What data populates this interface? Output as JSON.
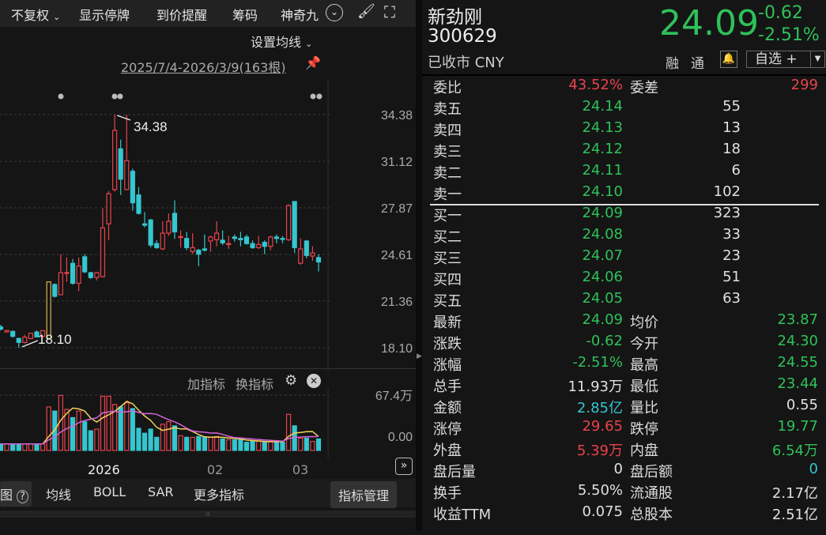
{
  "toolbar": {
    "items": [
      "不复权",
      "显示停牌",
      "到价提醒",
      "筹码",
      "神奇九"
    ],
    "icons": [
      "chevron-down-icon",
      "circle-chevron-icon",
      "brush-icon",
      "fullscreen-icon"
    ]
  },
  "chart": {
    "ma_setting": "设置均线",
    "range": "2025/7/4-2026/3/9(163根)",
    "high_label": "34.38",
    "low_label": "18.10",
    "indicator_add": "加指标",
    "indicator_switch": "换指标",
    "vol_max": "67.4万",
    "vol_min": "0.00",
    "x_labels": [
      "2026",
      "02",
      "03"
    ]
  },
  "chart_data": {
    "type": "candlestick",
    "y_ticks": [
      34.38,
      31.12,
      27.87,
      24.61,
      21.36,
      18.1
    ],
    "ylim": [
      18.1,
      34.38
    ],
    "colors": {
      "up": "#e9424c",
      "down": "#35c6cf",
      "limit_up": "#d9b64a"
    },
    "limit_up_index": 8,
    "ohlc": [
      [
        19.55,
        19.7,
        19.3,
        19.4
      ],
      [
        19.2,
        19.35,
        19.15,
        19.3
      ],
      [
        19.24,
        19.3,
        18.8,
        18.9
      ],
      [
        18.74,
        18.8,
        18.1,
        18.47
      ],
      [
        18.47,
        19.0,
        18.4,
        18.84
      ],
      [
        18.74,
        19.11,
        18.7,
        19.11
      ],
      [
        19.2,
        19.3,
        18.84,
        18.85
      ],
      [
        18.9,
        19.3,
        18.8,
        19.29
      ],
      [
        18.74,
        22.7,
        18.74,
        22.7
      ],
      [
        22.51,
        22.6,
        21.6,
        21.69
      ],
      [
        21.8,
        24.63,
        21.78,
        23.34
      ],
      [
        23.3,
        24.4,
        22.7,
        23.35
      ],
      [
        23.99,
        24.3,
        22.5,
        22.6
      ],
      [
        22.6,
        24.4,
        22.05,
        23.8
      ],
      [
        24.45,
        24.63,
        23.3,
        23.4
      ],
      [
        23.34,
        23.4,
        22.9,
        23.0
      ],
      [
        23.0,
        23.4,
        22.8,
        23.34
      ],
      [
        23.07,
        27.85,
        23.0,
        26.47
      ],
      [
        26.75,
        29.04,
        25.6,
        28.86
      ],
      [
        29.14,
        34.38,
        29.0,
        33.28
      ],
      [
        31.99,
        32.63,
        28.77,
        29.87
      ],
      [
        29.14,
        34.38,
        29.1,
        31.16
      ],
      [
        30.42,
        30.6,
        27.66,
        28.22
      ],
      [
        28.77,
        29.32,
        27.4,
        27.48
      ],
      [
        26.75,
        27.57,
        26.5,
        26.65
      ],
      [
        27.02,
        27.1,
        25.1,
        25.27
      ],
      [
        25.37,
        25.6,
        25.0,
        25.09
      ],
      [
        25.0,
        26.93,
        24.91,
        26.1
      ],
      [
        26.1,
        27.48,
        25.9,
        26.93
      ],
      [
        27.48,
        28.4,
        25.7,
        26.19
      ],
      [
        25.83,
        26.29,
        25.09,
        25.86
      ],
      [
        25.73,
        26.19,
        24.91,
        25.09
      ],
      [
        24.81,
        26.1,
        24.63,
        25.09
      ],
      [
        24.91,
        25.0,
        23.8,
        24.63
      ],
      [
        25.0,
        26.01,
        24.81,
        24.91
      ],
      [
        25.55,
        25.92,
        24.81,
        25.83
      ],
      [
        25.64,
        26.93,
        25.18,
        26.1
      ],
      [
        25.61,
        26.29,
        25.27,
        25.42
      ],
      [
        25.33,
        25.92,
        25.0,
        25.37
      ],
      [
        25.83,
        26.01,
        25.5,
        25.73
      ],
      [
        25.73,
        26.19,
        25.18,
        25.64
      ],
      [
        25.83,
        26.0,
        25.3,
        25.37
      ],
      [
        25.37,
        25.6,
        25.0,
        25.09
      ],
      [
        25.09,
        25.92,
        25.0,
        25.31
      ],
      [
        25.46,
        25.6,
        24.63,
        25.18
      ],
      [
        25.18,
        25.92,
        24.91,
        25.83
      ],
      [
        25.83,
        26.01,
        25.4,
        25.73
      ],
      [
        25.73,
        25.9,
        25.4,
        25.69
      ],
      [
        25.64,
        28.12,
        25.55,
        28.03
      ],
      [
        28.31,
        28.31,
        24.72,
        25.09
      ],
      [
        24.0,
        25.73,
        23.89,
        25.0
      ],
      [
        25.55,
        25.64,
        24.35,
        24.54
      ],
      [
        24.5,
        25.18,
        24.17,
        24.72
      ],
      [
        24.39,
        24.63,
        23.43,
        24.09
      ]
    ],
    "volume_wan": [
      8,
      8,
      8,
      8,
      8,
      8,
      8,
      8,
      53,
      48,
      67,
      50,
      40,
      48,
      35,
      24,
      26,
      66,
      66,
      56,
      53,
      58,
      51,
      27,
      21,
      26,
      16,
      32,
      35,
      30,
      18,
      16,
      16,
      17,
      16,
      16,
      17,
      14,
      13,
      13,
      13,
      10,
      11,
      11,
      10,
      11,
      11,
      10,
      44,
      30,
      15,
      15,
      11,
      14
    ],
    "volume_max_wan": 67.4
  },
  "bottom_tabs": {
    "items": [
      "图",
      "均线",
      "BOLL",
      "SAR",
      "更多指标"
    ],
    "manage": "指标管理"
  },
  "stock": {
    "name": "新劲刚",
    "code": "300629",
    "status": "已收市 CNY",
    "price": "24.09",
    "change": "-0.62",
    "change_pct": "-2.51%",
    "tags": [
      "融",
      "通"
    ],
    "watch": "自选 +"
  },
  "quote": {
    "wb": {
      "l1": "委比",
      "v1": "43.52%",
      "l2": "委差",
      "v2": "299"
    },
    "asks": [
      {
        "l": "卖五",
        "p": "24.14",
        "q": "55"
      },
      {
        "l": "卖四",
        "p": "24.13",
        "q": "13"
      },
      {
        "l": "卖三",
        "p": "24.12",
        "q": "18"
      },
      {
        "l": "卖二",
        "p": "24.11",
        "q": "6"
      },
      {
        "l": "卖一",
        "p": "24.10",
        "q": "102"
      }
    ],
    "bids": [
      {
        "l": "买一",
        "p": "24.09",
        "q": "323"
      },
      {
        "l": "买二",
        "p": "24.08",
        "q": "33"
      },
      {
        "l": "买三",
        "p": "24.07",
        "q": "23"
      },
      {
        "l": "买四",
        "p": "24.06",
        "q": "51"
      },
      {
        "l": "买五",
        "p": "24.05",
        "q": "63"
      }
    ],
    "stats": [
      {
        "l1": "最新",
        "v1": "24.09",
        "c1": "green",
        "l2": "均价",
        "v2": "23.87",
        "c2": "green"
      },
      {
        "l1": "涨跌",
        "v1": "-0.62",
        "c1": "green",
        "l2": "今开",
        "v2": "24.30",
        "c2": "green"
      },
      {
        "l1": "涨幅",
        "v1": "-2.51%",
        "c1": "green",
        "l2": "最高",
        "v2": "24.55",
        "c2": "green"
      },
      {
        "l1": "总手",
        "v1": "11.93万",
        "c1": "white",
        "l2": "最低",
        "v2": "23.44",
        "c2": "green"
      },
      {
        "l1": "金额",
        "v1": "2.85亿",
        "c1": "cyan",
        "l2": "量比",
        "v2": "0.55",
        "c2": "white"
      },
      {
        "l1": "涨停",
        "v1": "29.65",
        "c1": "red",
        "l2": "跌停",
        "v2": "19.77",
        "c2": "green"
      },
      {
        "l1": "外盘",
        "v1": "5.39万",
        "c1": "red",
        "l2": "内盘",
        "v2": "6.54万",
        "c2": "green"
      },
      {
        "l1": "盘后量",
        "v1": "0",
        "c1": "white",
        "l2": "盘后额",
        "v2": "0",
        "c2": "cyan"
      },
      {
        "l1": "换手",
        "v1": "5.50%",
        "c1": "white",
        "l2": "流通股",
        "v2": "2.17亿",
        "c2": "white"
      },
      {
        "l1": "收益TTM",
        "v1": "0.075",
        "c1": "white",
        "l2": "总股本",
        "v2": "2.51亿",
        "c2": "white"
      }
    ]
  }
}
